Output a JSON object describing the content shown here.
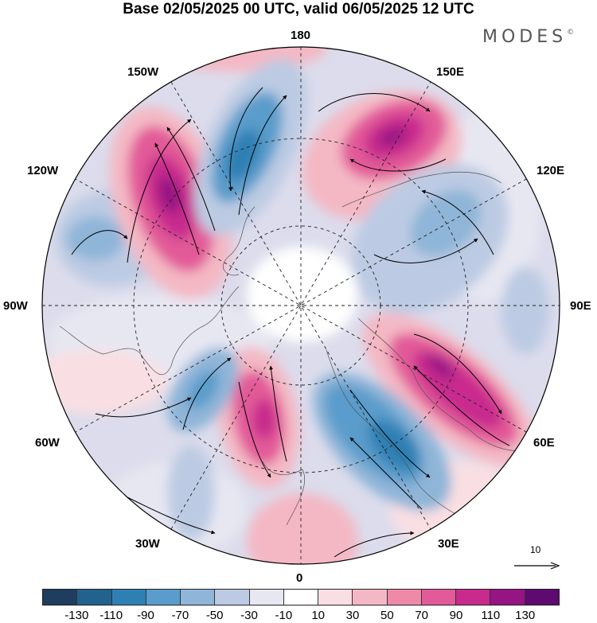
{
  "title": "Base 02/05/2025 00 UTC, valid 06/05/2025 12 UTC",
  "brand": "MODES",
  "brand_mark": "©",
  "longitude_labels": {
    "lon_180": "180",
    "lon_150w": "150W",
    "lon_150e": "150E",
    "lon_120w": "120W",
    "lon_120e": "120E",
    "lon_90w": "90W",
    "lon_90e": "90E",
    "lon_60w": "60W",
    "lon_60e": "60E",
    "lon_30w": "30W",
    "lon_30e": "30E",
    "lon_0": "0"
  },
  "reference_vector": {
    "label": "10"
  },
  "colorbar": {
    "colors": [
      "#1f3d5e",
      "#21628e",
      "#2e80b4",
      "#5a9ccb",
      "#8fb5d8",
      "#bccbe3",
      "#e7e7f2",
      "#ffffff",
      "#f9dfe3",
      "#f4b8c4",
      "#ee8aa8",
      "#e25a98",
      "#c82a8d",
      "#961484",
      "#5e0a70"
    ],
    "ticks": [
      "-130",
      "-110",
      "-90",
      "-70",
      "-50",
      "-30",
      "-10",
      "10",
      "30",
      "50",
      "70",
      "90",
      "110",
      "130"
    ]
  }
}
